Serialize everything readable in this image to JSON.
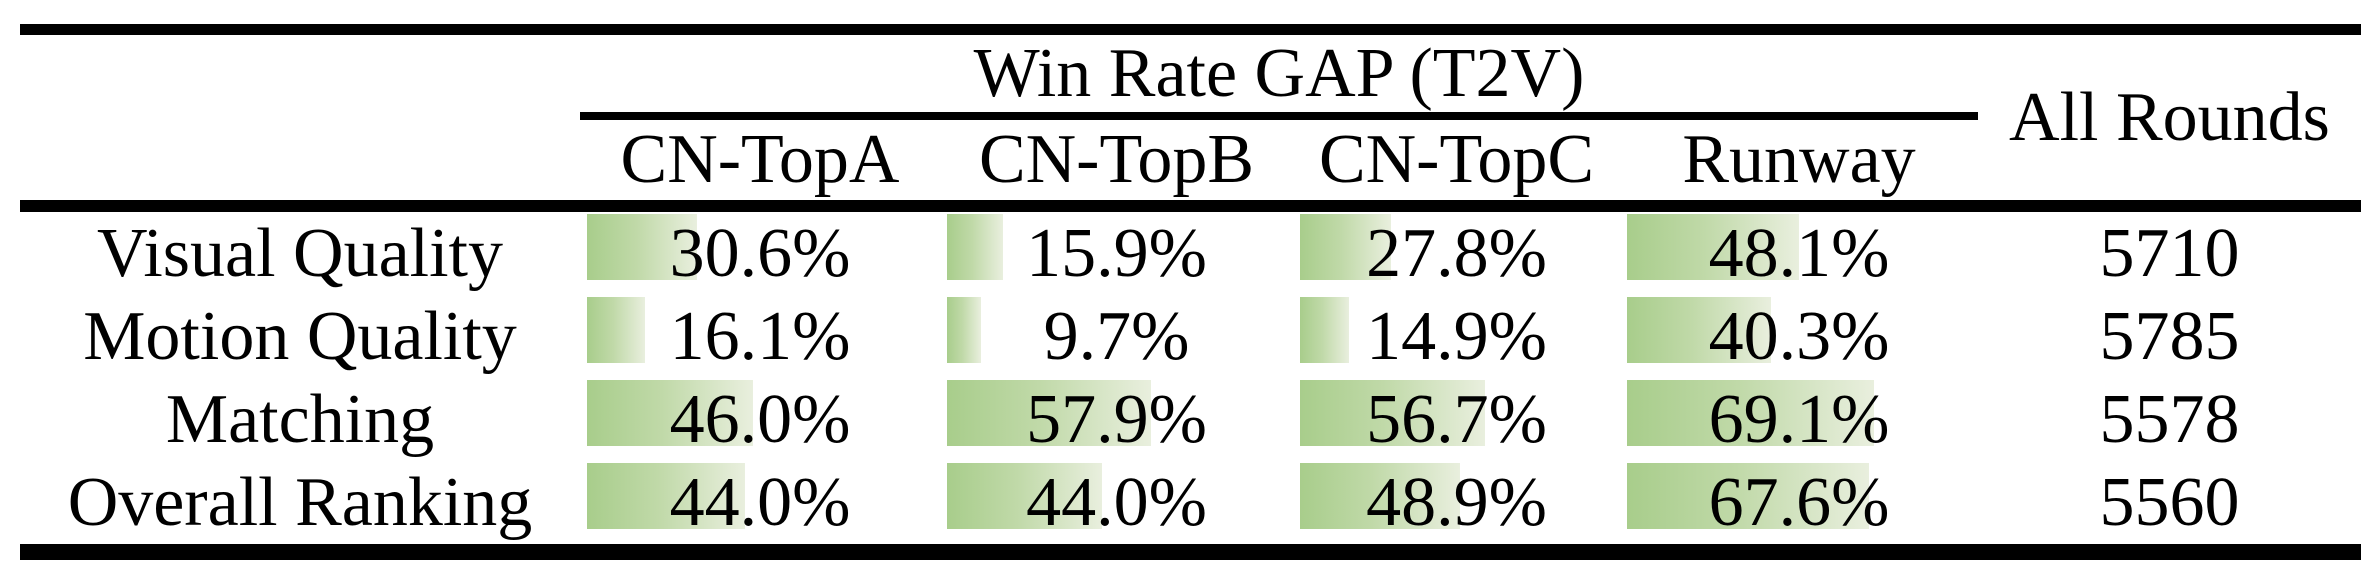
{
  "table": {
    "group_header": "Win Rate GAP (T2V)",
    "all_rounds_header": "All Rounds",
    "columns": [
      "CN-TopA",
      "CN-TopB",
      "CN-TopC",
      "Runway"
    ],
    "rows": [
      {
        "label": "Visual Quality",
        "win_rates": [
          "30.6%",
          "15.9%",
          "27.8%",
          "48.1%"
        ],
        "win_rate_values": [
          30.6,
          15.9,
          27.8,
          48.1
        ],
        "all_rounds": "5710"
      },
      {
        "label": "Motion Quality",
        "win_rates": [
          "16.1%",
          "9.7%",
          "14.9%",
          "40.3%"
        ],
        "win_rate_values": [
          16.1,
          9.7,
          14.9,
          40.3
        ],
        "all_rounds": "5785"
      },
      {
        "label": "Matching",
        "win_rates": [
          "46.0%",
          "57.9%",
          "56.7%",
          "69.1%"
        ],
        "win_rate_values": [
          46.0,
          57.9,
          56.7,
          69.1
        ],
        "all_rounds": "5578"
      },
      {
        "label": "Overall Ranking",
        "win_rates": [
          "44.0%",
          "44.0%",
          "48.9%",
          "67.6%"
        ],
        "win_rate_values": [
          44.0,
          44.0,
          48.9,
          67.6
        ],
        "all_rounds": "5560"
      }
    ],
    "bar_gradient": {
      "start": "#a8cd8b",
      "mid": "#c0d9a8",
      "end": "#e9efde"
    },
    "text_color": "#000000",
    "rule_color": "#000000"
  },
  "chart_data": {
    "type": "table",
    "title": "Win Rate GAP (T2V)",
    "columns": [
      "",
      "CN-TopA",
      "CN-TopB",
      "CN-TopC",
      "Runway",
      "All Rounds"
    ],
    "rows": [
      [
        "Visual Quality",
        30.6,
        15.9,
        27.8,
        48.1,
        5710
      ],
      [
        "Motion Quality",
        16.1,
        9.7,
        14.9,
        40.3,
        5785
      ],
      [
        "Matching",
        46.0,
        57.9,
        56.7,
        69.1,
        5578
      ],
      [
        "Overall Ranking",
        44.0,
        44.0,
        48.9,
        67.6,
        5560
      ]
    ],
    "notes": "Win-rate cells contain green data bars whose width is proportional to the percentage (100% = full cell width)."
  }
}
